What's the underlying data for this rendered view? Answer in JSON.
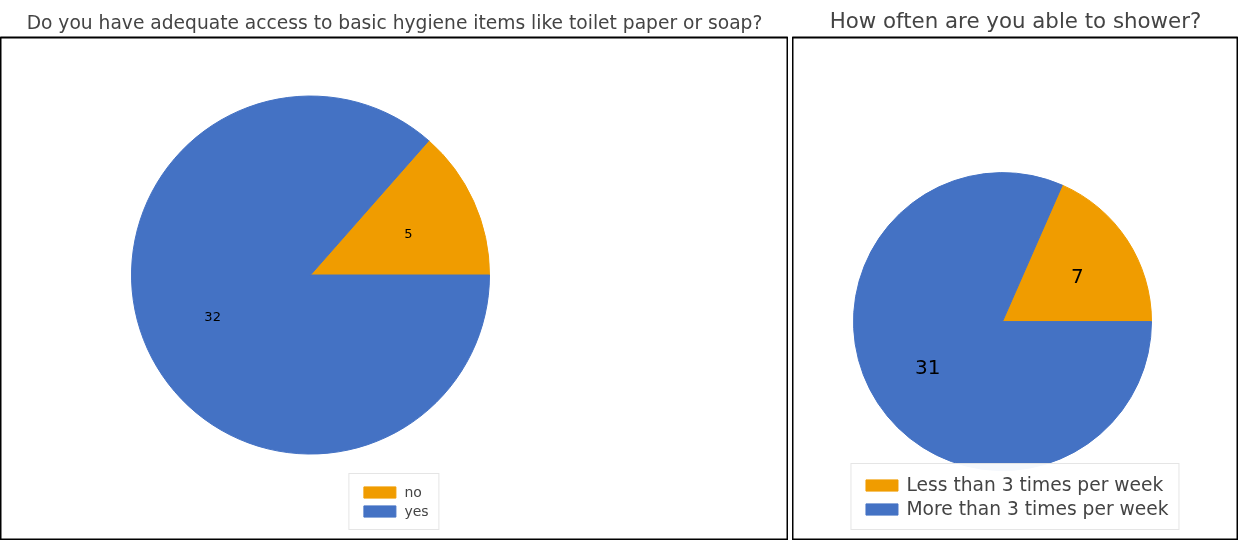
{
  "chart_data": [
    {
      "type": "pie",
      "title": "Do you have adequate access to basic hygiene items like toilet paper or soap?",
      "categories": [
        "no",
        "yes"
      ],
      "values": [
        5,
        32
      ],
      "colors": [
        "#f09c00",
        "#4472c4"
      ],
      "data_labels": true,
      "legend": "bottom"
    },
    {
      "type": "pie",
      "title": "How often are you able to shower?",
      "categories": [
        "Less than 3 times per week",
        "More than 3 times per week"
      ],
      "values": [
        7,
        31
      ],
      "colors": [
        "#f09c00",
        "#4472c4"
      ],
      "data_labels": true,
      "legend": "bottom"
    }
  ]
}
